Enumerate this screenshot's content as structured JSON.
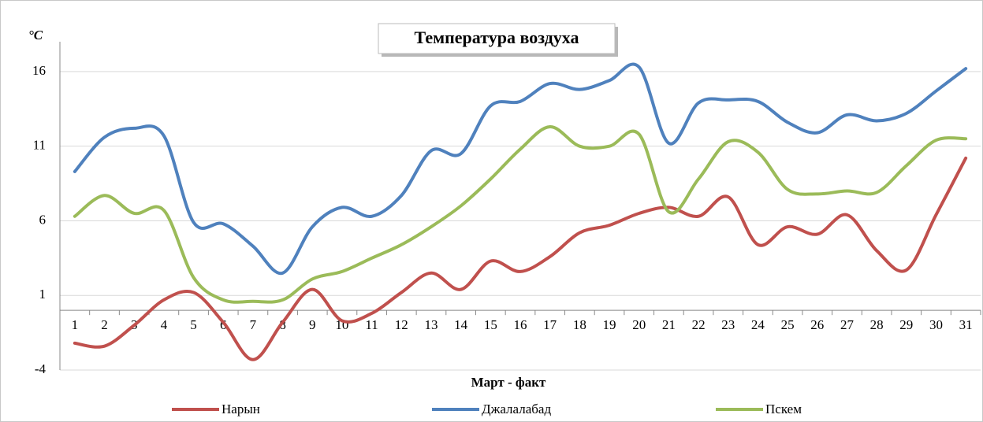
{
  "chart_data": {
    "type": "line",
    "title": "Температура воздуха",
    "y_label": "°C",
    "x_label": "Март - факт",
    "categories": [
      "1",
      "2",
      "3",
      "4",
      "5",
      "6",
      "7",
      "8",
      "9",
      "10",
      "11",
      "12",
      "13",
      "14",
      "15",
      "16",
      "17",
      "18",
      "19",
      "20",
      "21",
      "22",
      "23",
      "24",
      "25",
      "26",
      "27",
      "28",
      "29",
      "30",
      "31"
    ],
    "series": [
      {
        "name": "Нарын",
        "color": "#c0504d",
        "values": [
          -2.2,
          -2.4,
          -1.0,
          0.7,
          1.2,
          -0.8,
          -3.3,
          -0.8,
          1.4,
          -0.7,
          -0.2,
          1.2,
          2.5,
          1.4,
          3.3,
          2.6,
          3.6,
          5.2,
          5.7,
          6.5,
          6.9,
          6.3,
          7.6,
          4.4,
          5.6,
          5.1,
          6.4,
          4.0,
          2.7,
          6.4,
          10.2
        ]
      },
      {
        "name": "Джалалабад",
        "color": "#4f81bd",
        "values": [
          9.3,
          11.6,
          12.2,
          11.7,
          5.9,
          5.8,
          4.3,
          2.5,
          5.6,
          6.9,
          6.3,
          7.7,
          10.7,
          10.5,
          13.7,
          14.0,
          15.2,
          14.8,
          15.4,
          16.3,
          11.2,
          13.9,
          14.1,
          14.0,
          12.6,
          11.9,
          13.1,
          12.7,
          13.2,
          14.7,
          16.2
        ]
      },
      {
        "name": "Пскем",
        "color": "#9bbb59",
        "values": [
          6.3,
          7.7,
          6.5,
          6.7,
          2.2,
          0.7,
          0.6,
          0.7,
          2.1,
          2.6,
          3.5,
          4.4,
          5.6,
          7.0,
          8.8,
          10.8,
          12.3,
          11.0,
          11.0,
          11.8,
          6.6,
          8.8,
          11.3,
          10.6,
          8.1,
          7.8,
          8.0,
          7.9,
          9.7,
          11.4,
          11.5
        ]
      }
    ],
    "ylim": [
      -4,
      18
    ],
    "yticks": [
      -4,
      1,
      6,
      11,
      16
    ],
    "grid": true,
    "legend": "bottom",
    "smooth": true
  }
}
